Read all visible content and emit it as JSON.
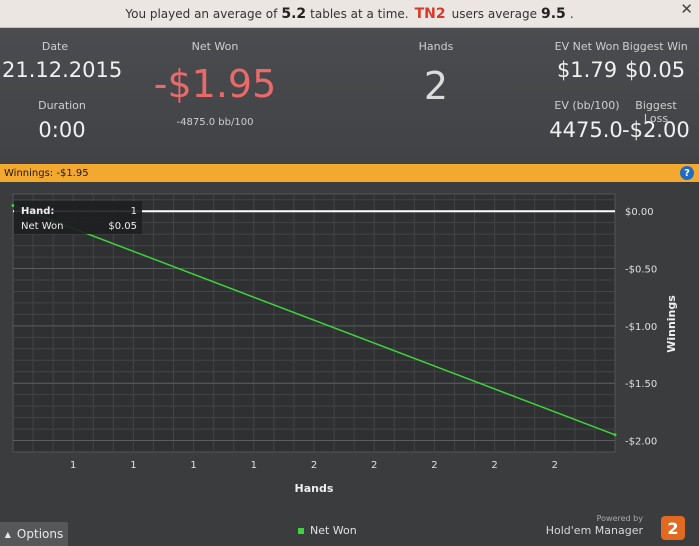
{
  "notice": {
    "prefix": "You played an average of",
    "avg_tables": "5.2",
    "middle": "tables at a time.",
    "group": "TN2",
    "users_text": "users average",
    "users_avg": "9.5",
    "suffix": "."
  },
  "stats": {
    "date_label": "Date",
    "date_value": "21.12.2015",
    "duration_label": "Duration",
    "duration_value": "0:00",
    "net_won_label": "Net Won",
    "net_won_value": "-$1.95",
    "net_won_bb": "-4875.0 bb/100",
    "hands_label": "Hands",
    "hands_value": "2",
    "ev_net_label": "EV Net Won",
    "ev_net_value": "$1.79",
    "biggest_win_label": "Biggest Win",
    "biggest_win_value": "$0.05",
    "ev_bb_label": "EV (bb/100)",
    "ev_bb_value": "4475.0",
    "biggest_loss_label": "Biggest Loss",
    "biggest_loss_value": "-$2.00"
  },
  "banner": {
    "text": "Winnings: -$1.95",
    "help": "?"
  },
  "tooltip": {
    "hand_label": "Hand:",
    "hand_value": "1",
    "net_label": "Net Won",
    "net_value": "$0.05"
  },
  "chart_data": {
    "type": "line",
    "xlabel": "Hands",
    "ylabel": "Winnings",
    "x_tick_labels": [
      "1",
      "1",
      "1",
      "1",
      "2",
      "2",
      "2",
      "2",
      "2"
    ],
    "y_ticks": [
      0,
      -0.5,
      -1.0,
      -1.5,
      -2.0
    ],
    "y_tick_labels": [
      "$0.00",
      "-$0.50",
      "-$1.00",
      "-$1.50",
      "-$2.00"
    ],
    "ylim": [
      -2.1,
      0.15
    ],
    "series": [
      {
        "name": "Net Won",
        "color": "#3ed23e",
        "points": [
          [
            0,
            0.05
          ],
          [
            1,
            -1.95
          ]
        ]
      }
    ],
    "zero_line_color": "#ffffff",
    "grid": true
  },
  "footer": {
    "options_label": "Options",
    "options_icon": "chevron-up-icon",
    "legend_label": "Net Won",
    "powered_by": "Powered by",
    "brand": "Hold'em Manager",
    "logo_text": "2"
  },
  "colors": {
    "accent_red": "#e86a6a",
    "banner": "#f3a92f",
    "line": "#3ed23e"
  }
}
